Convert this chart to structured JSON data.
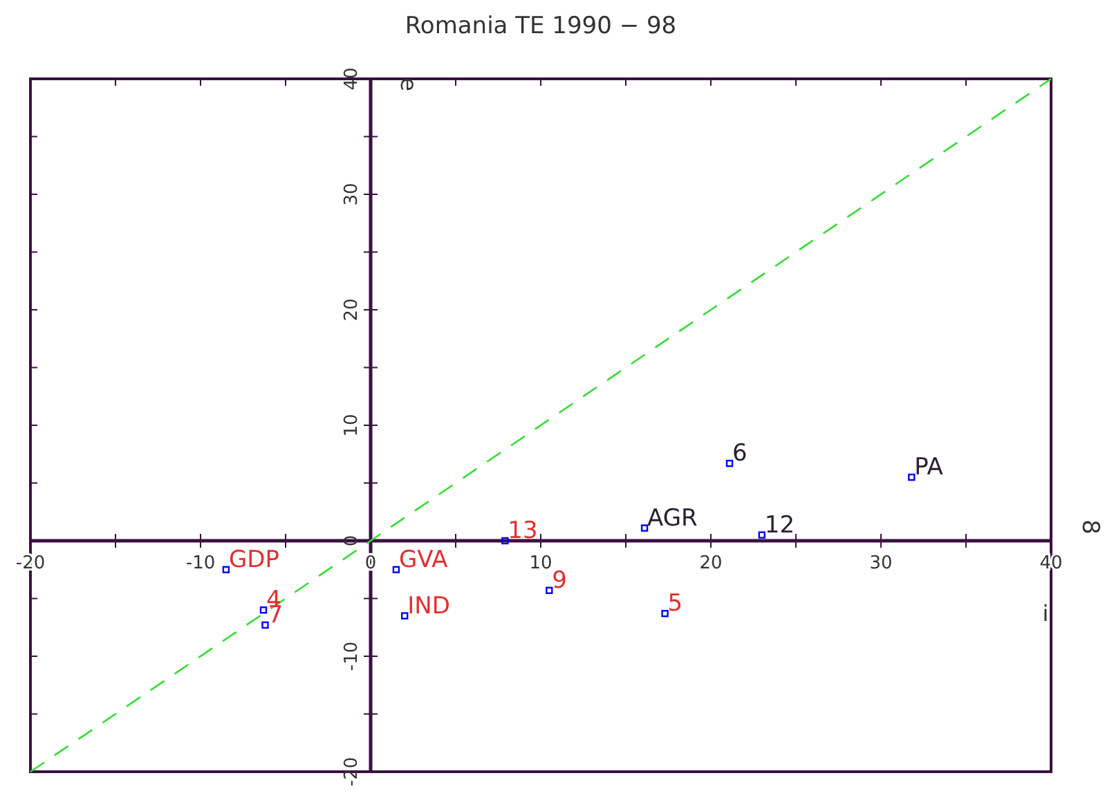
{
  "chart_data": {
    "type": "scatter",
    "title": "Romania TE 1990 − 98",
    "xlabel": "i",
    "ylabel": "e",
    "grid": false,
    "xlim": [
      -20,
      40
    ],
    "ylim": [
      -20,
      40
    ],
    "xticks": [
      -20,
      {
        "value": -15,
        "label": null
      },
      -10,
      {
        "value": -5,
        "label": null
      },
      0,
      {
        "value": 5,
        "label": null
      },
      10,
      {
        "value": 15,
        "label": null
      },
      20,
      {
        "value": 25,
        "label": null
      },
      30,
      {
        "value": 35,
        "label": null
      },
      40
    ],
    "yticks": [
      -20,
      {
        "value": -15,
        "label": null
      },
      -10,
      {
        "value": -5,
        "label": null
      },
      0,
      {
        "value": 5,
        "label": null
      },
      10,
      {
        "value": 15,
        "label": null
      },
      20,
      {
        "value": 25,
        "label": null
      },
      30,
      {
        "value": 35,
        "label": null
      },
      40
    ],
    "series": [
      {
        "color": "#0000ff",
        "marker": "square",
        "x": [
          -8.5,
          -6.3,
          -6.2,
          1.5,
          2.0,
          7.9,
          10.5,
          17.3
        ],
        "values": [
          -2.5,
          -6.0,
          -7.3,
          -2.5,
          -6.5,
          0,
          -4.3,
          -6.3
        ]
      },
      {
        "color": "#0000ff",
        "marker": "square",
        "x": [
          16.1,
          21.1,
          23.0,
          31.8
        ],
        "values": [
          1.1,
          6.7,
          0.5,
          5.5
        ]
      },
      {
        "type": "line",
        "color": "#33dd33",
        "line_style": "dashed",
        "x": [
          -20,
          40
        ],
        "values": [
          -20,
          40
        ]
      }
    ],
    "annotations": [
      {
        "text": "GDP",
        "x": -8.5,
        "y": -2.5
      },
      {
        "text": "4",
        "x": -6.3,
        "y": -6.0
      },
      {
        "text": "7",
        "x": -6.2,
        "y": -7.3
      },
      {
        "text": "GVA",
        "x": 1.5,
        "y": -2.5
      },
      {
        "text": "IND",
        "x": 2.0,
        "y": -6.5
      },
      {
        "text": "13",
        "x": 7.9,
        "y": 0
      },
      {
        "text": "9",
        "x": 10.5,
        "y": -4.3
      },
      {
        "text": "5",
        "x": 17.3,
        "y": -6.3
      },
      {
        "text": "AGR",
        "x": 16.1,
        "y": 1.1
      },
      {
        "text": "6",
        "x": 21.1,
        "y": 6.7
      },
      {
        "text": "12",
        "x": 23.0,
        "y": 0.5
      },
      {
        "text": "PA",
        "x": 31.8,
        "y": 5.5
      },
      "8"
    ]
  }
}
